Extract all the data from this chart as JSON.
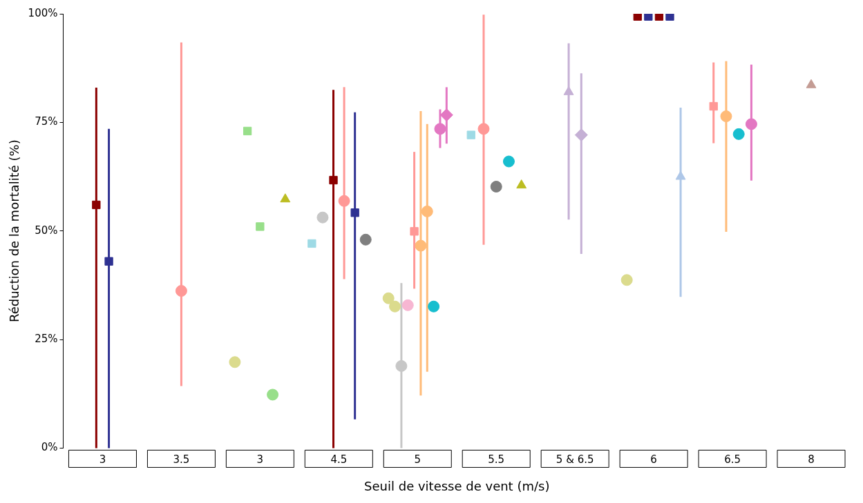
{
  "chart_data": {
    "type": "scatter",
    "xlabel": "Seuil de vitesse de vent (m/s)",
    "ylabel": "Réduction de la mortalité (%)",
    "categories": [
      "3",
      "3.5",
      "3",
      "4.5",
      "5",
      "5.5",
      "5 & 6.5",
      "6",
      "6.5",
      "8"
    ],
    "ylim": [
      0,
      100
    ],
    "yticks": [
      {
        "value": 0,
        "label": "0%"
      },
      {
        "value": 25,
        "label": "25%"
      },
      {
        "value": 50,
        "label": "50%"
      },
      {
        "value": 75,
        "label": "75%"
      },
      {
        "value": 100,
        "label": "100%"
      }
    ],
    "grid": false,
    "legend": false,
    "series": [
      {
        "color": "#dbdb8d",
        "marker": "circle",
        "values": [
          null,
          null,
          19.8,
          null,
          34.5,
          null,
          null,
          38.7,
          null,
          null
        ]
      },
      {
        "color": "#dbdb8d",
        "marker": "circle",
        "values": [
          null,
          null,
          null,
          null,
          32.6,
          null,
          null,
          null,
          null,
          null
        ]
      },
      {
        "color": "#9edae5",
        "marker": "square",
        "values": [
          null,
          null,
          null,
          47.1,
          null,
          72.1,
          null,
          null,
          null,
          null
        ]
      },
      {
        "color": "#c7c7c7",
        "marker": "circle",
        "values": [
          null,
          null,
          null,
          53.1,
          18.9,
          null,
          null,
          null,
          null,
          null
        ],
        "errors": [
          null,
          null,
          null,
          null,
          [
            0,
            38
          ],
          null,
          null,
          null,
          null,
          null
        ]
      },
      {
        "color": "#8b0000",
        "marker": "square",
        "values": [
          56,
          null,
          null,
          61.7,
          null,
          null,
          null,
          99.4,
          null,
          null
        ],
        "errors": [
          [
            0,
            83
          ],
          null,
          null,
          [
            0,
            82.5
          ],
          null,
          null,
          null,
          null,
          null,
          null
        ]
      },
      {
        "color": "#2e3192",
        "marker": "square",
        "values": [
          43,
          null,
          null,
          null,
          null,
          null,
          null,
          99.4,
          null,
          null
        ],
        "errors": [
          [
            0,
            73.5
          ],
          null,
          null,
          null,
          null,
          null,
          null,
          null,
          null,
          null
        ]
      },
      {
        "color": "#ff9896",
        "marker": "circle",
        "values": [
          null,
          36.2,
          null,
          56.9,
          null,
          73.5,
          null,
          null,
          null,
          null
        ],
        "errors": [
          null,
          [
            14.3,
            93.4
          ],
          null,
          [
            38.9,
            83.1
          ],
          null,
          [
            46.8,
            99.8
          ],
          null,
          null,
          null,
          null
        ]
      },
      {
        "color": "#8b0000",
        "marker": "square",
        "values": [
          null,
          null,
          null,
          null,
          null,
          null,
          null,
          99.4,
          null,
          null
        ]
      },
      {
        "color": "#2e3192",
        "marker": "square",
        "values": [
          null,
          null,
          null,
          54.2,
          null,
          null,
          null,
          99.4,
          null,
          null
        ],
        "errors": [
          null,
          null,
          null,
          [
            6.6,
            77.3
          ],
          null,
          null,
          null,
          null,
          null,
          null
        ]
      },
      {
        "color": "#7f7f7f",
        "marker": "circle",
        "values": [
          null,
          null,
          null,
          48,
          null,
          60.2,
          null,
          null,
          null,
          null
        ]
      },
      {
        "color": "#98df8a",
        "marker": "square",
        "values": [
          null,
          null,
          73,
          null,
          null,
          null,
          null,
          null,
          null,
          null
        ]
      },
      {
        "color": "#98df8a",
        "marker": "square",
        "values": [
          null,
          null,
          51,
          null,
          null,
          null,
          null,
          null,
          null,
          null
        ]
      },
      {
        "color": "#98df8a",
        "marker": "circle",
        "values": [
          null,
          null,
          12.3,
          null,
          null,
          null,
          null,
          null,
          null,
          null
        ]
      },
      {
        "color": "#f7b6d2",
        "marker": "circle",
        "values": [
          null,
          null,
          null,
          null,
          32.9,
          null,
          null,
          null,
          null,
          null
        ]
      },
      {
        "color": "#ff9896",
        "marker": "square",
        "values": [
          null,
          null,
          null,
          null,
          49.9,
          null,
          null,
          null,
          78.7,
          null
        ],
        "errors": [
          null,
          null,
          null,
          null,
          [
            36.7,
            68.2
          ],
          null,
          null,
          null,
          [
            70.2,
            88.8
          ],
          null
        ]
      },
      {
        "color": "#ffbb78",
        "marker": "circle",
        "values": [
          null,
          null,
          null,
          null,
          46.6,
          null,
          null,
          null,
          76.4,
          null
        ],
        "errors": [
          null,
          null,
          null,
          null,
          [
            12.1,
            77.6
          ],
          null,
          null,
          null,
          [
            49.8,
            89.1
          ],
          null
        ]
      },
      {
        "color": "#ffbb78",
        "marker": "circle",
        "values": [
          null,
          null,
          null,
          null,
          54.5,
          null,
          null,
          null,
          null,
          null
        ],
        "errors": [
          null,
          null,
          null,
          null,
          [
            17.6,
            74.6
          ],
          null,
          null,
          null,
          null,
          null
        ]
      },
      {
        "color": "#17becf",
        "marker": "circle",
        "values": [
          null,
          null,
          null,
          null,
          32.6,
          66,
          null,
          null,
          72.3,
          null
        ]
      },
      {
        "color": "#e377c2",
        "marker": "circle",
        "values": [
          null,
          null,
          null,
          null,
          73.5,
          null,
          null,
          null,
          74.6,
          null
        ],
        "errors": [
          null,
          null,
          null,
          null,
          [
            69.1,
            78
          ],
          null,
          null,
          null,
          [
            61.6,
            88.3
          ],
          null
        ]
      },
      {
        "color": "#e377c2",
        "marker": "diamond",
        "values": [
          null,
          null,
          null,
          null,
          76.7,
          null,
          null,
          null,
          null,
          null
        ],
        "errors": [
          null,
          null,
          null,
          null,
          [
            70.1,
            83.1
          ],
          null,
          null,
          null,
          null,
          null
        ]
      },
      {
        "color": "#bcbd22",
        "marker": "triangle",
        "values": [
          null,
          null,
          57.3,
          null,
          null,
          60.5,
          null,
          null,
          null,
          null
        ]
      },
      {
        "color": "#c5b0d5",
        "marker": "triangle",
        "values": [
          null,
          null,
          null,
          null,
          null,
          null,
          82,
          null,
          null,
          null
        ],
        "errors": [
          null,
          null,
          null,
          null,
          null,
          null,
          [
            52.6,
            93.2
          ],
          null,
          null,
          null
        ]
      },
      {
        "color": "#c5b0d5",
        "marker": "diamond",
        "values": [
          null,
          null,
          null,
          null,
          null,
          null,
          72.1,
          null,
          null,
          null
        ],
        "errors": [
          null,
          null,
          null,
          null,
          null,
          null,
          [
            44.7,
            86.3
          ],
          null,
          null,
          null
        ]
      },
      {
        "color": "#aec7e8",
        "marker": "triangle",
        "values": [
          null,
          null,
          null,
          null,
          null,
          null,
          null,
          62.5,
          null,
          null
        ],
        "errors": [
          null,
          null,
          null,
          null,
          null,
          null,
          null,
          [
            34.8,
            78.4
          ],
          null,
          null
        ]
      },
      {
        "color": "#c49c94",
        "marker": "triangle",
        "values": [
          null,
          null,
          null,
          null,
          null,
          null,
          null,
          null,
          null,
          83.6
        ]
      }
    ]
  }
}
